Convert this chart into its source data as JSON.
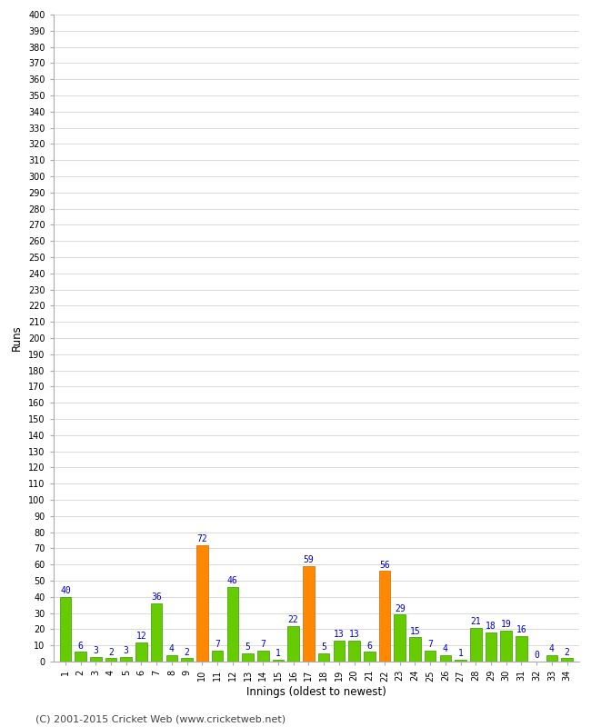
{
  "xlabel": "Innings (oldest to newest)",
  "ylabel": "Runs",
  "values": [
    40,
    6,
    3,
    2,
    3,
    12,
    36,
    4,
    2,
    72,
    7,
    46,
    5,
    7,
    1,
    22,
    59,
    5,
    13,
    13,
    6,
    56,
    29,
    15,
    7,
    4,
    1,
    21,
    18,
    19,
    16,
    0,
    4,
    2
  ],
  "innings": [
    1,
    2,
    3,
    4,
    5,
    6,
    7,
    8,
    9,
    10,
    11,
    12,
    13,
    14,
    15,
    16,
    17,
    18,
    19,
    20,
    21,
    22,
    23,
    24,
    25,
    26,
    27,
    28,
    29,
    30,
    31,
    32,
    33,
    34
  ],
  "fifty_threshold": 50,
  "bar_color_normal": "#66cc00",
  "bar_color_fifty": "#ff8800",
  "bar_color_edge_normal": "#339900",
  "bar_color_edge_fifty": "#cc6600",
  "label_color": "#0000cc",
  "label_fontsize": 7,
  "axis_label_fontsize": 8.5,
  "tick_fontsize": 7,
  "ylim": [
    0,
    400
  ],
  "ytick_step": 10,
  "background_color": "#ffffff",
  "grid_color": "#cccccc",
  "footer_text": "(C) 2001-2015 Cricket Web (www.cricketweb.net)",
  "footer_fontsize": 8,
  "footer_color": "#444444"
}
